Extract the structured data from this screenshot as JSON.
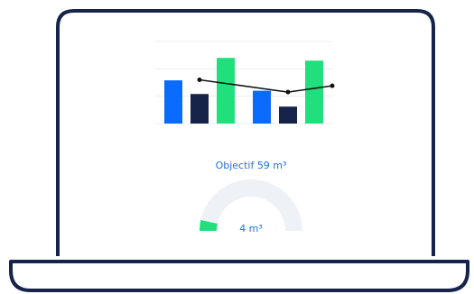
{
  "chart_data": {
    "type": "bar",
    "categories": [
      null,
      null
    ],
    "ylim": [
      0,
      3
    ],
    "yticks": [
      0,
      1,
      2,
      3
    ],
    "grid": true,
    "series": [
      {
        "color": "#0a6cff",
        "values": [
          1.58,
          1.2
        ]
      },
      {
        "color": "#16234a",
        "values": [
          1.08,
          0.62
        ]
      },
      {
        "color": "#1fe07c",
        "values": [
          2.4,
          2.3
        ]
      }
    ],
    "line": {
      "color": "#111111",
      "x": [
        0,
        1,
        1.5
      ],
      "values": [
        1.6,
        1.15,
        1.38
      ]
    }
  },
  "gauge": {
    "goal_label": "Objectif 59 m³",
    "goal": 59,
    "value": 4,
    "value_label": "4 m³",
    "color": "#1fe07c",
    "track_color": "#eef2f6"
  }
}
